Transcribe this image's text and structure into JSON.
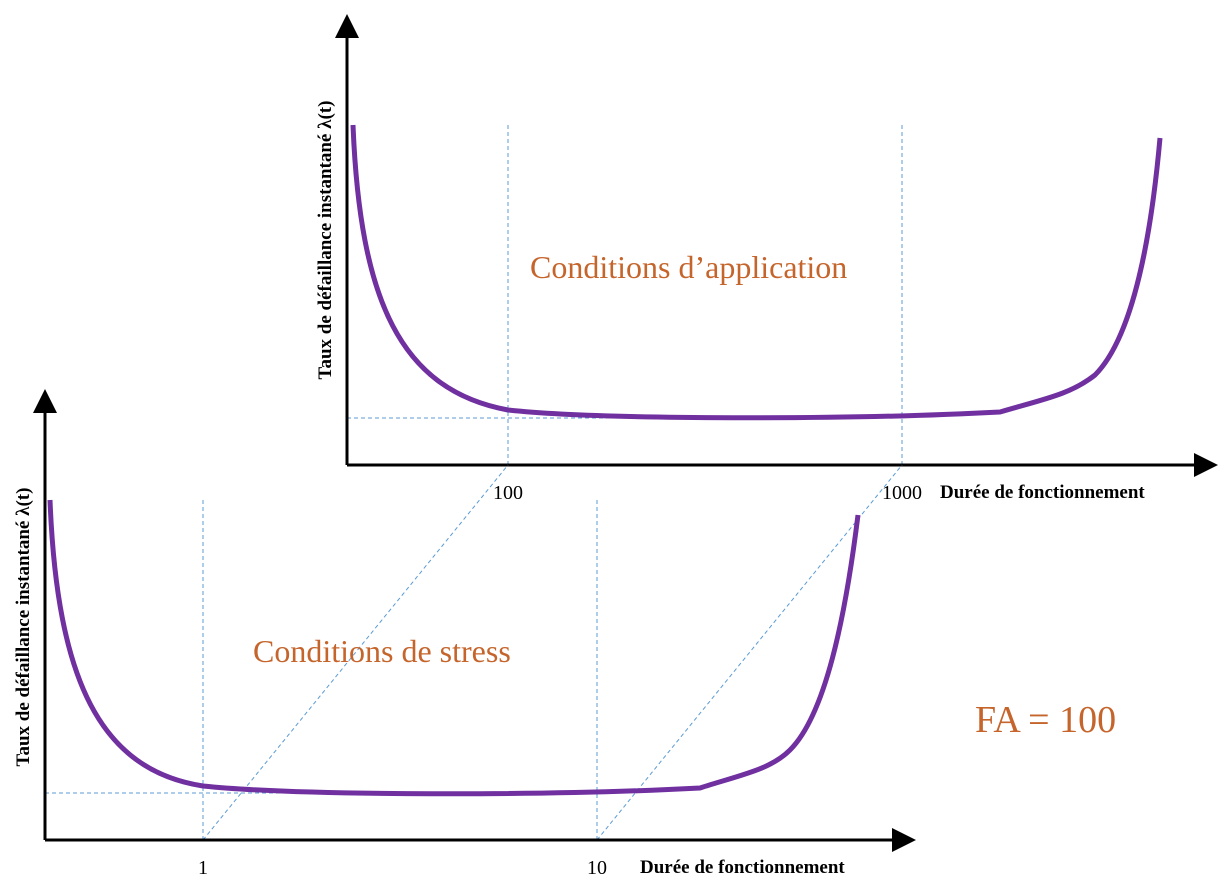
{
  "panels": [
    {
      "region_label": "Conditions d’application",
      "y_axis_label": "Taux de défaillance instantané λ(t)",
      "x_axis_label": "Durée de fonctionnement",
      "ticks": [
        "100",
        "1000"
      ]
    },
    {
      "region_label": "Conditions de stress",
      "y_axis_label": "Taux de défaillance instantané λ(t)",
      "x_axis_label": "Durée de fonctionnement",
      "ticks": [
        "1",
        "10"
      ]
    }
  ],
  "annotation": "FA = 100"
}
